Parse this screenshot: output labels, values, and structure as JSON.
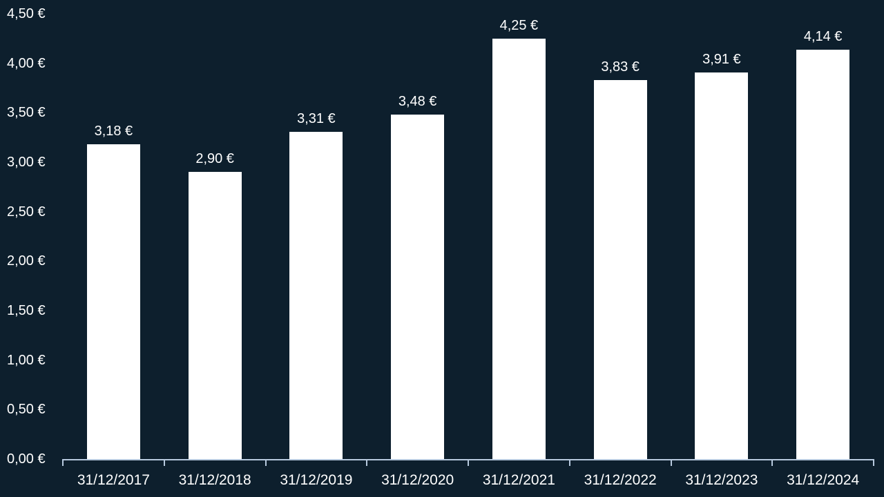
{
  "chart_data": {
    "type": "bar",
    "title": "",
    "xlabel": "",
    "ylabel": "",
    "categories": [
      "31/12/2017",
      "31/12/2018",
      "31/12/2019",
      "31/12/2020",
      "31/12/2021",
      "31/12/2022",
      "31/12/2023",
      "31/12/2024"
    ],
    "values": [
      3.18,
      2.9,
      3.31,
      3.48,
      4.25,
      3.83,
      3.91,
      4.14
    ],
    "value_labels": [
      "3,18 €",
      "2,90 €",
      "3,31 €",
      "3,48 €",
      "4,25 €",
      "3,83 €",
      "3,91 €",
      "4,14 €"
    ],
    "y_tick_values": [
      0,
      0.5,
      1,
      1.5,
      2,
      2.5,
      3,
      3.5,
      4,
      4.5
    ],
    "y_tick_labels": [
      "0,00 €",
      "0,50 €",
      "1,00 €",
      "1,50 €",
      "2,00 €",
      "2,50 €",
      "3,00 €",
      "3,50 €",
      "4,00 €",
      "4,50 €"
    ],
    "ylim": [
      0,
      4.5
    ],
    "grid": "off",
    "legend": "none",
    "colors": {
      "background": "#0d1f2d",
      "bar": "#ffffff",
      "text": "#ffffff",
      "axis_line": "#b7c9de"
    }
  }
}
